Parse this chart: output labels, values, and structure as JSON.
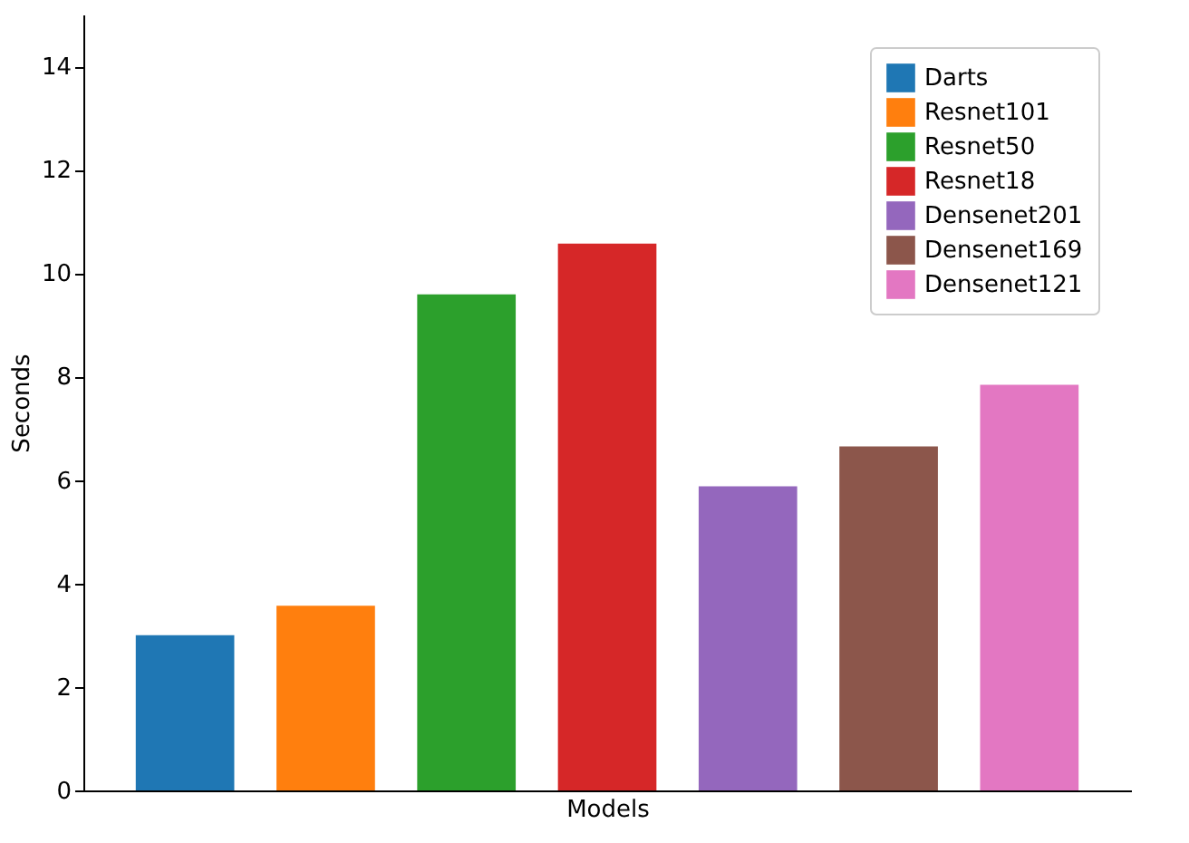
{
  "chart_data": {
    "type": "bar",
    "xlabel": "Models",
    "ylabel": "Seconds",
    "categories": [
      null
    ],
    "series": [
      {
        "name": "Darts",
        "color": "#1f77b4",
        "values": [
          3.0
        ]
      },
      {
        "name": "Resnet101",
        "color": "#ff7f0e",
        "values": [
          3.57
        ]
      },
      {
        "name": "Resnet50",
        "color": "#2ca02c",
        "values": [
          9.59
        ]
      },
      {
        "name": "Resnet18",
        "color": "#d62728",
        "values": [
          10.57
        ]
      },
      {
        "name": "Densenet201",
        "color": "#9467bd",
        "values": [
          5.88
        ]
      },
      {
        "name": "Densenet169",
        "color": "#8c564b",
        "values": [
          6.65
        ]
      },
      {
        "name": "Densenet121",
        "color": "#e377c2",
        "values": [
          7.84
        ]
      }
    ],
    "ylim": [
      0,
      15
    ],
    "yticks": [
      0,
      2,
      4,
      6,
      8,
      10,
      12,
      14
    ],
    "legend": "top right",
    "tick_labels": "y"
  }
}
